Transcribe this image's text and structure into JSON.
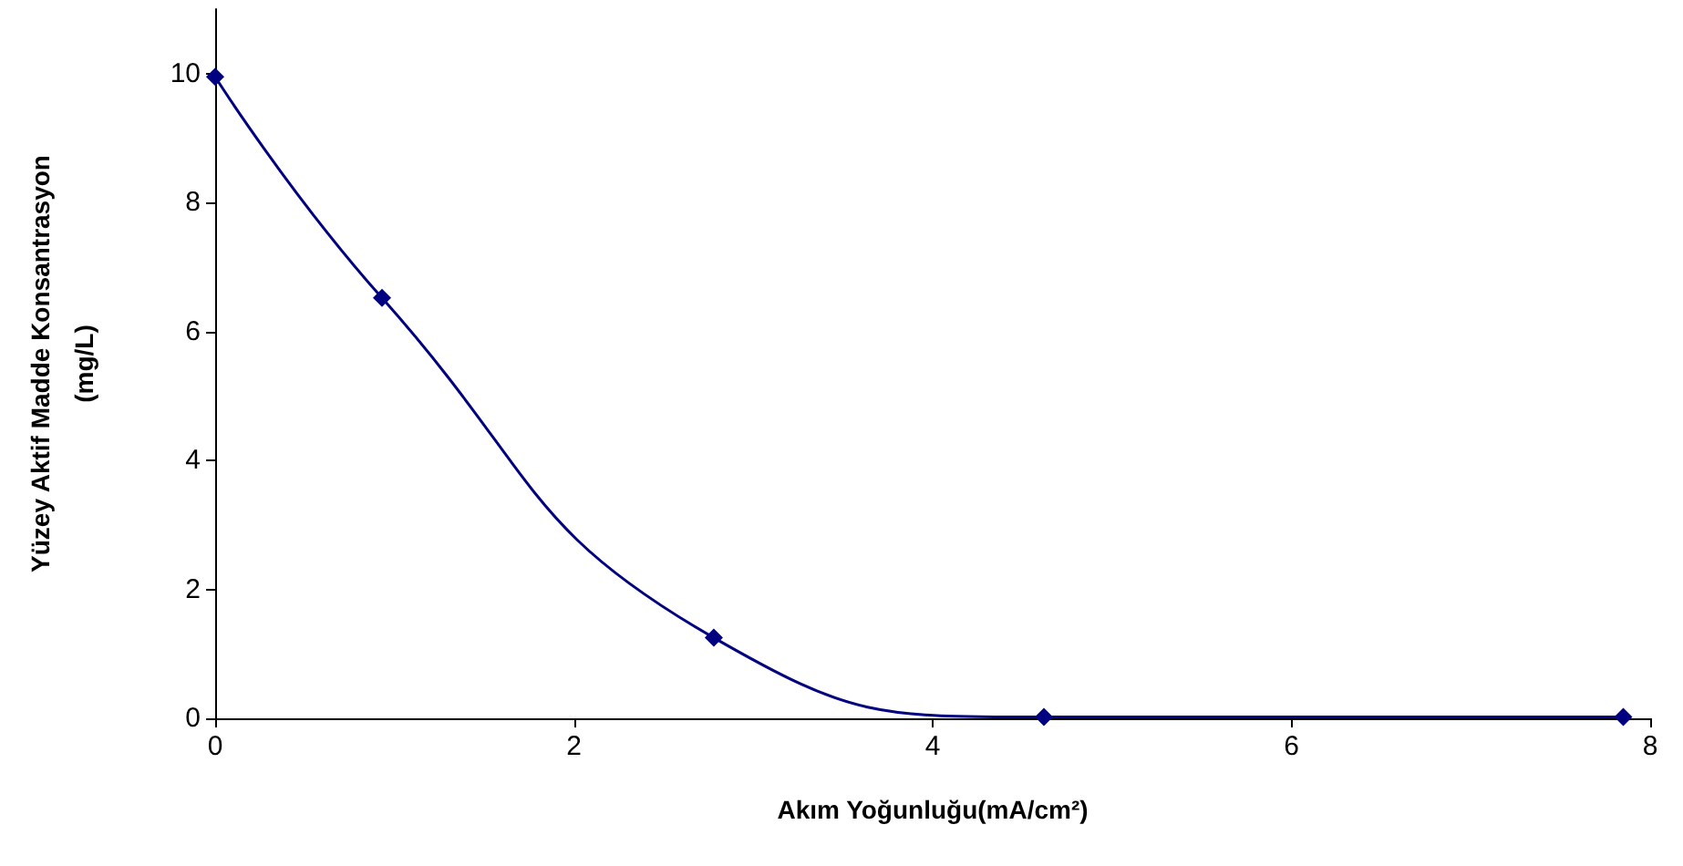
{
  "chart_data": {
    "type": "line",
    "xlabel": "Akım Yoğunluğu(mA/cm²)",
    "ylabel": "Yüzey Aktif Madde Konsantrasyon\n(mg/L)",
    "series": [
      {
        "color": "#000080",
        "x": [
          0,
          0.93,
          2.78,
          4.62,
          7.85
        ],
        "values": [
          9.95,
          6.52,
          1.25,
          0.02,
          0.02
        ]
      }
    ],
    "xlim": [
      0,
      8
    ],
    "xticks": [
      0,
      2,
      4,
      6,
      8
    ],
    "ylim": [
      0,
      11
    ],
    "yticks": [
      0,
      2,
      4,
      6,
      8,
      10
    ],
    "marker": "diamond",
    "line_style": "solid"
  }
}
